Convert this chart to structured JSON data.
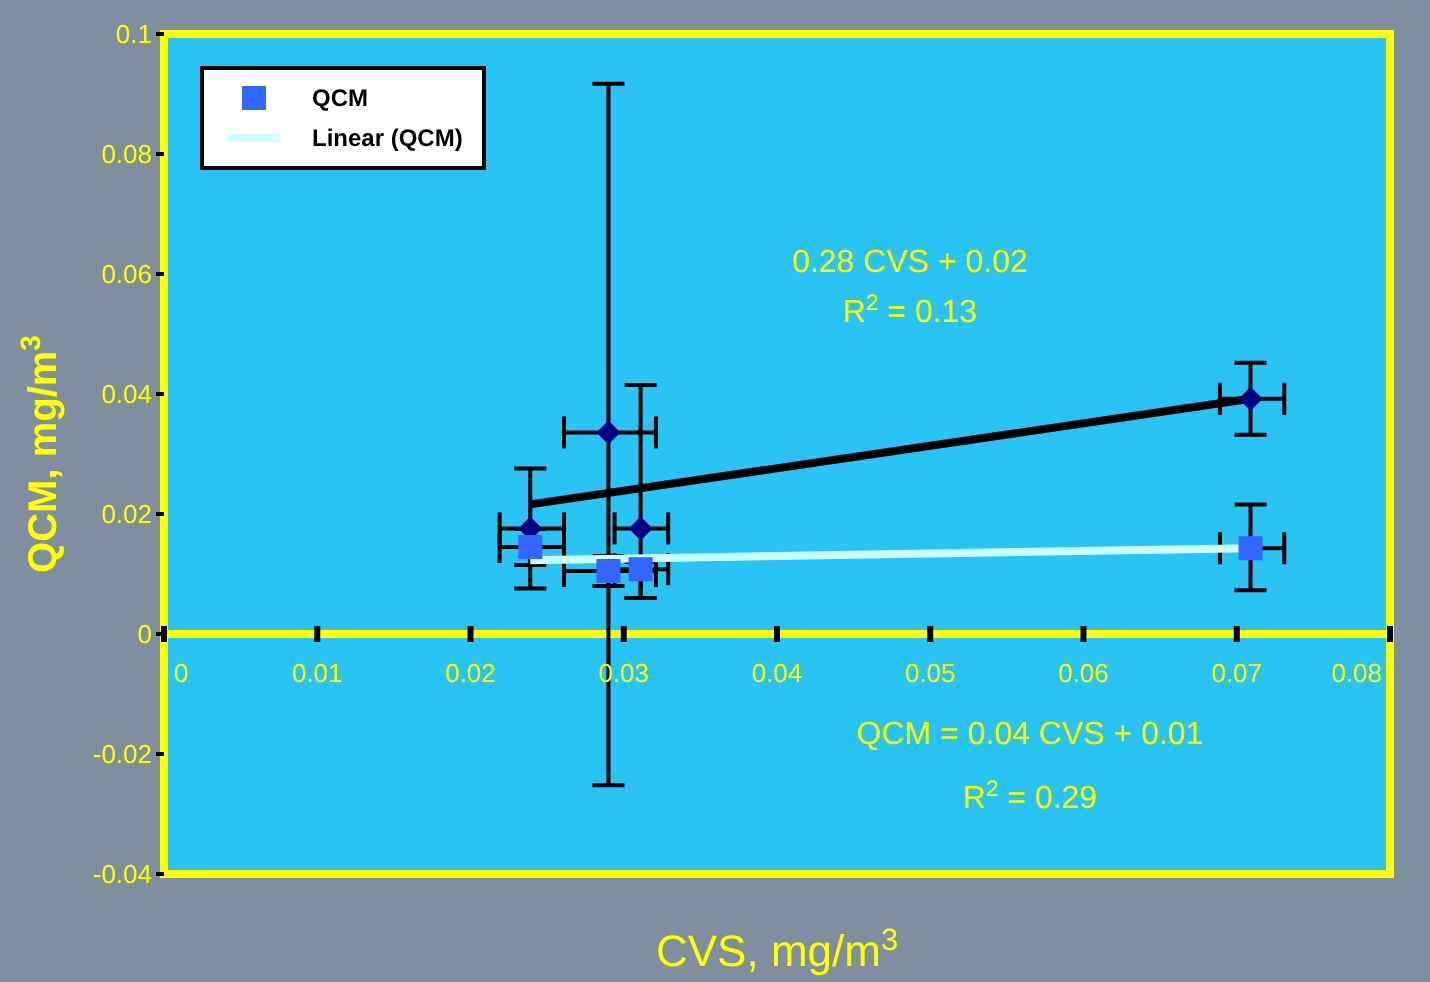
{
  "chart_data": {
    "type": "scatter",
    "xlabel": "CVS, mg/m$^{3}$",
    "ylabel": "QCM, mg/m$^{3}$",
    "xlim": [
      0,
      0.08
    ],
    "xticks": [
      0,
      0.01,
      0.02,
      0.03,
      0.04,
      0.05,
      0.06,
      0.07,
      0.08
    ],
    "ylim": [
      -0.04,
      0.1
    ],
    "yticks": [
      -0.04,
      -0.02,
      0,
      0.02,
      0.04,
      0.06,
      0.08,
      0.1
    ],
    "legend": "top left",
    "annotations": [
      "0.28 CVS + 0.02",
      "R$^{2}$ = 0.13",
      "QCM = 0.04 CVS + 0.01",
      "R$^{2}$ = 0.29"
    ],
    "series": [
      {
        "marker": "diamond",
        "color": "#000080",
        "x": [
          0.0239,
          0.029,
          0.0311,
          0.0709
        ],
        "values": [
          0.0176,
          0.0336,
          0.0176,
          0.0392
        ],
        "errors": [
          [
            0.0076,
            0.0276
          ],
          [
            -0.0252,
            0.0917
          ],
          [
            0.006,
            0.0415
          ],
          [
            0.0332,
            0.0452
          ]
        ],
        "xerrors": [
          [
            0.0219,
            0.0261
          ],
          [
            0.0261,
            0.0321
          ],
          [
            0.0294,
            0.0329
          ],
          [
            0.0689,
            0.0731
          ]
        ]
      },
      {
        "name": "QCM",
        "marker": "square",
        "color": "#3366ff",
        "x": [
          0.0239,
          0.029,
          0.0311,
          0.0709
        ],
        "values": [
          0.0145,
          0.0105,
          0.0108,
          0.0143
        ],
        "errors": [
          [
            0.0115,
            0.0175
          ],
          [
            0.008,
            0.013
          ],
          [
            0.006,
            0.012
          ],
          [
            0.0073,
            0.0216
          ]
        ],
        "xerrors": [
          [
            0.0219,
            0.0261
          ],
          [
            0.0261,
            0.0321
          ],
          [
            0.0294,
            0.0329
          ],
          [
            0.0689,
            0.0731
          ]
        ]
      },
      {
        "type": "line",
        "color": "#000000",
        "x": [
          0.0239,
          0.0709
        ],
        "values": [
          0.0216,
          0.0392
        ]
      },
      {
        "type": "line",
        "name": "Linear (QCM)",
        "color": "#ccffff",
        "x": [
          0.0239,
          0.0709
        ],
        "values": [
          0.0123,
          0.0143
        ]
      }
    ]
  }
}
